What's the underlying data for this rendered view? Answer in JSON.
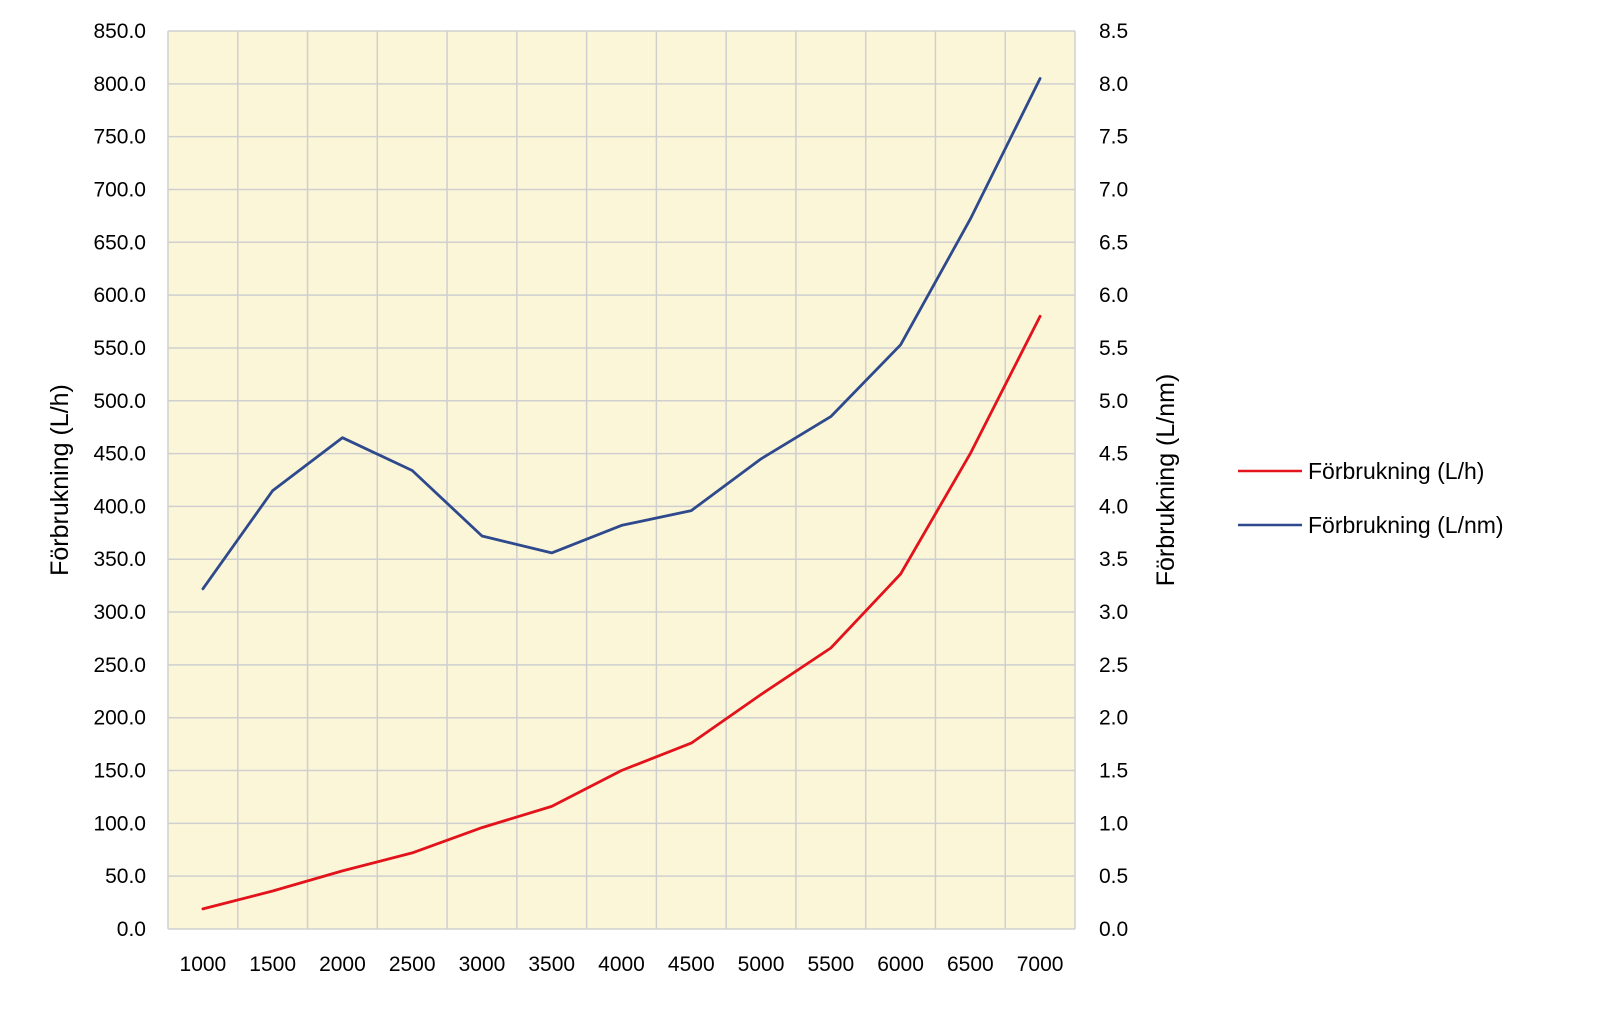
{
  "chart_data": {
    "type": "line",
    "x": [
      1000,
      1500,
      2000,
      2500,
      3000,
      3500,
      4000,
      4500,
      5000,
      5500,
      6000,
      6500,
      7000
    ],
    "x_tick_labels": [
      "1000",
      "1500",
      "2000",
      "2500",
      "3000",
      "3500",
      "4000",
      "4500",
      "5000",
      "5500",
      "6000",
      "6500",
      "7000"
    ],
    "y_left": {
      "label": "Förbrukning (L/h)",
      "lim": [
        0,
        850
      ],
      "ticks": [
        0,
        50,
        100,
        150,
        200,
        250,
        300,
        350,
        400,
        450,
        500,
        550,
        600,
        650,
        700,
        750,
        800,
        850
      ],
      "tick_labels": [
        "0.0",
        "50.0",
        "100.0",
        "150.0",
        "200.0",
        "250.0",
        "300.0",
        "350.0",
        "400.0",
        "450.0",
        "500.0",
        "550.0",
        "600.0",
        "650.0",
        "700.0",
        "750.0",
        "800.0",
        "850.0"
      ]
    },
    "y_right": {
      "label": "Förbrukning (L/nm)",
      "lim": [
        0,
        8.5
      ],
      "ticks": [
        0,
        0.5,
        1,
        1.5,
        2,
        2.5,
        3,
        3.5,
        4,
        4.5,
        5,
        5.5,
        6,
        6.5,
        7,
        7.5,
        8,
        8.5
      ],
      "tick_labels": [
        "0.0",
        "0.5",
        "1.0",
        "1.5",
        "2.0",
        "2.5",
        "3.0",
        "3.5",
        "4.0",
        "4.5",
        "5.0",
        "5.5",
        "6.0",
        "6.5",
        "7.0",
        "7.5",
        "8.0",
        "8.5"
      ]
    },
    "series": [
      {
        "name": "Förbrukning (L/h)",
        "axis": "left",
        "color": "#e3131b",
        "values": [
          19,
          36,
          55,
          72,
          96,
          116,
          150,
          176,
          222,
          266,
          336,
          450,
          580
        ]
      },
      {
        "name": "Förbrukning (L/nm)",
        "axis": "right",
        "color": "#2e4a8c",
        "values": [
          3.22,
          4.15,
          4.65,
          4.34,
          3.72,
          3.56,
          3.82,
          3.96,
          4.45,
          4.85,
          5.53,
          6.72,
          8.05
        ]
      }
    ],
    "plot_background": "#fcf6d9",
    "grid_color": "#cfcfcf",
    "grid": true,
    "legend_position": "right"
  }
}
